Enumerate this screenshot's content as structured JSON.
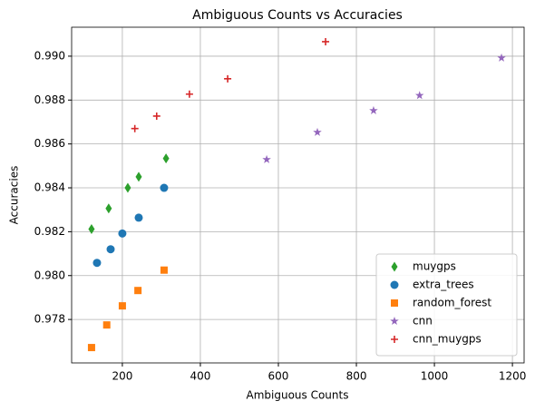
{
  "chart_data": {
    "type": "scatter",
    "title": "Ambiguous Counts vs Accuracies",
    "x_label": "Ambiguous Counts",
    "y_label": "Accuracies",
    "xlim": [
      70,
      1230
    ],
    "ylim": [
      0.97602,
      0.99132
    ],
    "xticks": [
      200,
      400,
      600,
      800,
      1000,
      1200
    ],
    "yticks": [
      0.978,
      {
        "value": 0.98,
        "label": "0.980"
      },
      0.982,
      0.984,
      0.986,
      0.988,
      {
        "value": 0.99,
        "label": "0.990"
      }
    ],
    "grid": true,
    "legend": "lower right",
    "series": [
      {
        "name": "muygps",
        "color": "#2ca02c",
        "marker": "d",
        "x": [
          121,
          165,
          214,
          242,
          312
        ],
        "values": [
          0.98212,
          0.98306,
          0.984,
          0.9845,
          0.98534
        ]
      },
      {
        "name": "extra_trees",
        "color": "#1f77b4",
        "marker": "o",
        "x": [
          135,
          170,
          200,
          242,
          307
        ],
        "values": [
          0.98058,
          0.9812,
          0.98192,
          0.98264,
          0.984
        ]
      },
      {
        "name": "random_forest",
        "color": "#ff7f0e",
        "marker": "s",
        "x": [
          121,
          160,
          200,
          240,
          307
        ],
        "values": [
          0.97672,
          0.97775,
          0.97862,
          0.97932,
          0.98025
        ]
      },
      {
        "name": "cnn",
        "color": "#9467bd",
        "marker": "*",
        "x": [
          570,
          700,
          844,
          962,
          1172
        ],
        "values": [
          0.98529,
          0.98653,
          0.98752,
          0.98821,
          0.98992
        ]
      },
      {
        "name": "cnn_muygps",
        "color": "#d62728",
        "marker": "+",
        "x": [
          232,
          288,
          372,
          470,
          721
        ],
        "values": [
          0.9867,
          0.98727,
          0.98827,
          0.98897,
          0.99066
        ]
      }
    ]
  }
}
